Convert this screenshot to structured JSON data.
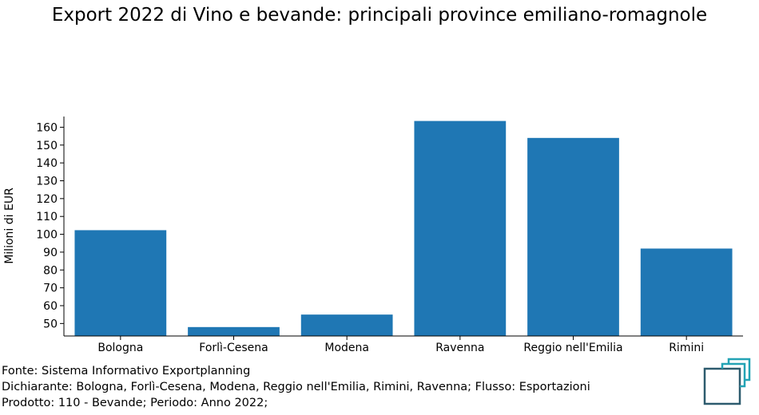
{
  "chart_data": {
    "type": "bar",
    "title": "Export 2022 di Vino e bevande: principali province emiliano-romagnole",
    "xlabel": "",
    "ylabel": "Milioni di EUR",
    "categories": [
      "Bologna",
      "Forlì-Cesena",
      "Modena",
      "Ravenna",
      "Reggio nell'Emilia",
      "Rimini"
    ],
    "values": [
      102.3,
      48.0,
      55.0,
      163.5,
      154.0,
      92.0
    ],
    "ylim": [
      43,
      166
    ],
    "yticks": [
      50,
      60,
      70,
      80,
      90,
      100,
      110,
      120,
      130,
      140,
      150,
      160
    ],
    "grid": false,
    "colors": {
      "bar": "#1f77b4"
    }
  },
  "footer": {
    "line1": "Fonte: Sistema Informativo Exportplanning",
    "line2": "Dichiarante: Bologna, Forlì-Cesena, Modena, Reggio nell'Emilia, Rimini, Ravenna; Flusso: Esportazioni",
    "line3": "Prodotto: 110 - Bevande; Periodo: Anno 2022;"
  },
  "logo": {
    "icon": "exportplanning-logo-icon",
    "colors": {
      "dark": "#2d5b6e",
      "accent": "#23a3b5"
    }
  }
}
